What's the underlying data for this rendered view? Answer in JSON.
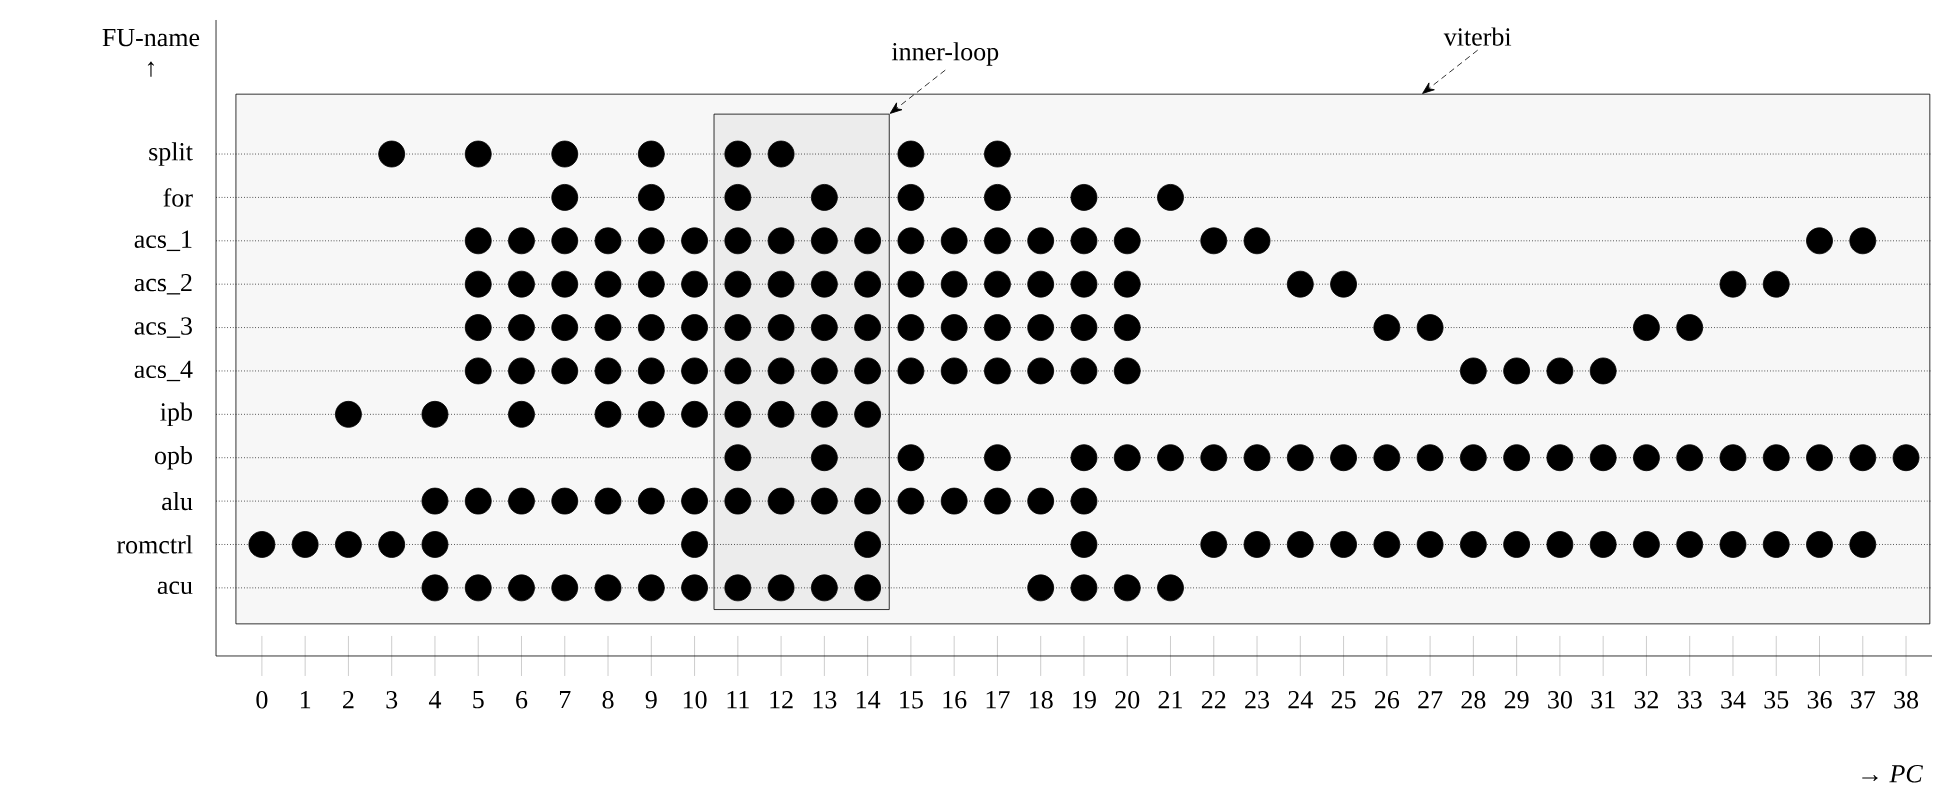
{
  "chart_data": {
    "type": "scatter",
    "orientation": "horizontal",
    "xlabel": "→ *PC*",
    "ylabel": "FU-name ↑",
    "marker": "circle",
    "grid": "y",
    "xlim": [
      -1.06,
      38.6
    ],
    "xticks": [
      0,
      1,
      2,
      3,
      4,
      5,
      6,
      7,
      8,
      9,
      10,
      11,
      12,
      13,
      14,
      15,
      16,
      17,
      18,
      19,
      20,
      21,
      22,
      23,
      24,
      25,
      26,
      27,
      28,
      29,
      30,
      31,
      32,
      33,
      34,
      35,
      36,
      37,
      38
    ],
    "categories": [
      "split",
      "for",
      "acs_1",
      "acs_2",
      "acs_3",
      "acs_4",
      "ipb",
      "opb",
      "alu",
      "romctrl",
      "acu"
    ],
    "bands": [
      {
        "axis": "x",
        "from": 10.45,
        "to": 14.5,
        "label": "inner-loop",
        "color": "#ececec"
      },
      {
        "axis": "x",
        "from": -0.6,
        "to": 38.55,
        "label": "viterbi",
        "color": "#f7f7f7"
      }
    ],
    "series": [
      {
        "color": "#000000",
        "values": [
          3,
          5,
          7,
          9,
          11,
          12,
          15,
          17
        ],
        "x": [
          "split",
          "split",
          "split",
          "split",
          "split",
          "split",
          "split",
          "split"
        ]
      },
      {
        "color": "#000000",
        "values": [
          7,
          9,
          11,
          13,
          15,
          17,
          19,
          21
        ],
        "x": [
          "for",
          "for",
          "for",
          "for",
          "for",
          "for",
          "for",
          "for"
        ]
      },
      {
        "color": "#000000",
        "values": [
          5,
          6,
          7,
          8,
          9,
          10,
          11,
          12,
          13,
          14,
          15,
          16,
          17,
          18,
          19,
          20,
          22,
          23,
          36,
          37
        ],
        "x": [
          "acs_1",
          "acs_1",
          "acs_1",
          "acs_1",
          "acs_1",
          "acs_1",
          "acs_1",
          "acs_1",
          "acs_1",
          "acs_1",
          "acs_1",
          "acs_1",
          "acs_1",
          "acs_1",
          "acs_1",
          "acs_1",
          "acs_1",
          "acs_1",
          "acs_1",
          "acs_1"
        ]
      },
      {
        "color": "#000000",
        "values": [
          5,
          6,
          7,
          8,
          9,
          10,
          11,
          12,
          13,
          14,
          15,
          16,
          17,
          18,
          19,
          20,
          24,
          25,
          34,
          35
        ],
        "x": [
          "acs_2",
          "acs_2",
          "acs_2",
          "acs_2",
          "acs_2",
          "acs_2",
          "acs_2",
          "acs_2",
          "acs_2",
          "acs_2",
          "acs_2",
          "acs_2",
          "acs_2",
          "acs_2",
          "acs_2",
          "acs_2",
          "acs_2",
          "acs_2",
          "acs_2",
          "acs_2"
        ]
      },
      {
        "color": "#000000",
        "values": [
          5,
          6,
          7,
          8,
          9,
          10,
          11,
          12,
          13,
          14,
          15,
          16,
          17,
          18,
          19,
          20,
          26,
          27,
          32,
          33
        ],
        "x": [
          "acs_3",
          "acs_3",
          "acs_3",
          "acs_3",
          "acs_3",
          "acs_3",
          "acs_3",
          "acs_3",
          "acs_3",
          "acs_3",
          "acs_3",
          "acs_3",
          "acs_3",
          "acs_3",
          "acs_3",
          "acs_3",
          "acs_3",
          "acs_3",
          "acs_3",
          "acs_3"
        ]
      },
      {
        "color": "#000000",
        "values": [
          5,
          6,
          7,
          8,
          9,
          10,
          11,
          12,
          13,
          14,
          15,
          16,
          17,
          18,
          19,
          20,
          28,
          29,
          30,
          31
        ],
        "x": [
          "acs_4",
          "acs_4",
          "acs_4",
          "acs_4",
          "acs_4",
          "acs_4",
          "acs_4",
          "acs_4",
          "acs_4",
          "acs_4",
          "acs_4",
          "acs_4",
          "acs_4",
          "acs_4",
          "acs_4",
          "acs_4",
          "acs_4",
          "acs_4",
          "acs_4",
          "acs_4"
        ]
      },
      {
        "color": "#000000",
        "values": [
          2,
          4,
          6,
          8,
          9,
          10,
          11,
          12,
          13,
          14
        ],
        "x": [
          "ipb",
          "ipb",
          "ipb",
          "ipb",
          "ipb",
          "ipb",
          "ipb",
          "ipb",
          "ipb",
          "ipb"
        ]
      },
      {
        "color": "#000000",
        "values": [
          11,
          13,
          15,
          17,
          19,
          20,
          21,
          22,
          23,
          24,
          25,
          26,
          27,
          28,
          29,
          30,
          31,
          32,
          33,
          34,
          35,
          36,
          37,
          38
        ],
        "x": [
          "opb",
          "opb",
          "opb",
          "opb",
          "opb",
          "opb",
          "opb",
          "opb",
          "opb",
          "opb",
          "opb",
          "opb",
          "opb",
          "opb",
          "opb",
          "opb",
          "opb",
          "opb",
          "opb",
          "opb",
          "opb",
          "opb",
          "opb",
          "opb"
        ]
      },
      {
        "color": "#000000",
        "values": [
          4,
          5,
          6,
          7,
          8,
          9,
          10,
          11,
          12,
          13,
          14,
          15,
          16,
          17,
          18,
          19
        ],
        "x": [
          "alu",
          "alu",
          "alu",
          "alu",
          "alu",
          "alu",
          "alu",
          "alu",
          "alu",
          "alu",
          "alu",
          "alu",
          "alu",
          "alu",
          "alu",
          "alu"
        ]
      },
      {
        "color": "#000000",
        "values": [
          0,
          1,
          2,
          3,
          4,
          10,
          14,
          19,
          22,
          23,
          24,
          25,
          26,
          27,
          28,
          29,
          30,
          31,
          32,
          33,
          34,
          35,
          36,
          37
        ],
        "x": [
          "romctrl",
          "romctrl",
          "romctrl",
          "romctrl",
          "romctrl",
          "romctrl",
          "romctrl",
          "romctrl",
          "romctrl",
          "romctrl",
          "romctrl",
          "romctrl",
          "romctrl",
          "romctrl",
          "romctrl",
          "romctrl",
          "romctrl",
          "romctrl",
          "romctrl",
          "romctrl",
          "romctrl",
          "romctrl",
          "romctrl",
          "romctrl"
        ]
      },
      {
        "color": "#000000",
        "values": [
          4,
          5,
          6,
          7,
          8,
          9,
          10,
          11,
          12,
          13,
          14,
          18,
          19,
          20,
          21
        ],
        "x": [
          "acu",
          "acu",
          "acu",
          "acu",
          "acu",
          "acu",
          "acu",
          "acu",
          "acu",
          "acu",
          "acu",
          "acu",
          "acu",
          "acu",
          "acu"
        ]
      }
    ]
  }
}
